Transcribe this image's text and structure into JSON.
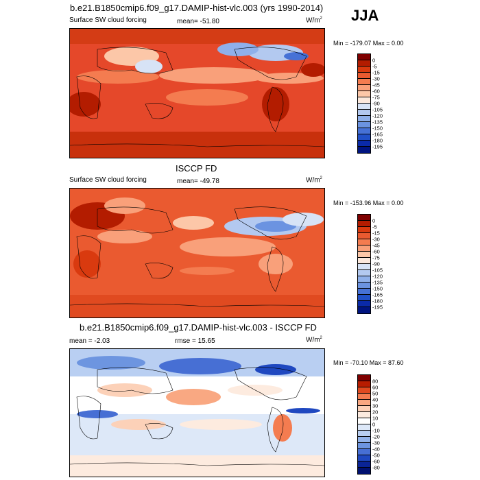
{
  "panel1": {
    "title": "b.e21.B1850cmip6.f09_g17.DAMIP-hist-vlc.003 (yrs 1990-2014)",
    "season": "JJA",
    "left_label": "Surface SW cloud forcing",
    "mean_text": "mean= -51.80",
    "units_base": "W/m",
    "units_sup": "2",
    "minmax_text": "Min = -179.07 Max =   0.00",
    "colorbar_ticks": [
      "0",
      "-5",
      "-15",
      "-30",
      "-45",
      "-60",
      "-75",
      "-90",
      "-105",
      "-120",
      "-135",
      "-150",
      "-165",
      "-180",
      "-195"
    ]
  },
  "panel2": {
    "title": "ISCCP FD",
    "left_label": "Surface SW cloud forcing",
    "mean_text": "mean= -49.78",
    "units_base": "W/m",
    "units_sup": "2",
    "minmax_text": "Min = -153.96 Max =   0.00",
    "colorbar_ticks": [
      "0",
      "-5",
      "-15",
      "-30",
      "-45",
      "-60",
      "-75",
      "-90",
      "-105",
      "-120",
      "-135",
      "-150",
      "-165",
      "-180",
      "-195"
    ]
  },
  "panel3": {
    "title": "b.e21.B1850cmip6.f09_g17.DAMIP-hist-vlc.003 - ISCCP FD",
    "mean_text": "mean =  -2.03",
    "rmse_text": "rmse =  15.65",
    "units_base": "W/m",
    "units_sup": "2",
    "minmax_text": "Min = -70.10 Max =  87.60",
    "colorbar_ticks": [
      "80",
      "60",
      "50",
      "40",
      "30",
      "20",
      "10",
      "0",
      "-10",
      "-20",
      "-30",
      "-40",
      "-50",
      "-60",
      "-80"
    ]
  },
  "colors": {
    "forcing_scale": [
      "#7f0000",
      "#b31c00",
      "#d93a0f",
      "#ea5a30",
      "#f47c50",
      "#f9a07a",
      "#fcc7a8",
      "#fbe8dc",
      "#d7e3f6",
      "#b3c9f0",
      "#8fb0ea",
      "#6b93e1",
      "#4671d6",
      "#2150c8",
      "#0a2aa8",
      "#001480"
    ],
    "diff_scale": [
      "#7f0000",
      "#b71c00",
      "#e04a20",
      "#f47c50",
      "#f9a882",
      "#fcd1b8",
      "#fdebdf",
      "#ffffff",
      "#dde8f8",
      "#b9cff2",
      "#93b3ea",
      "#6d95e0",
      "#476fd4",
      "#1f48c0",
      "#0a2496",
      "#001070"
    ]
  }
}
